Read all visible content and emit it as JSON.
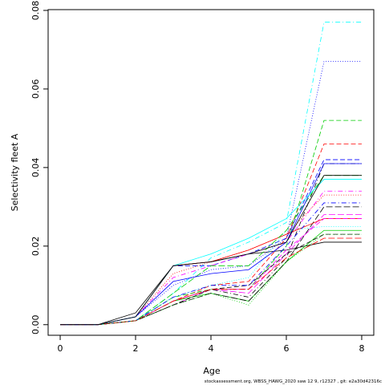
{
  "chart_data": {
    "type": "line",
    "xlabel": "Age",
    "ylabel": "Selectivity fleet A",
    "footnote": "stockassessment.org, WBSS_HAWG_2020 saw 12 9, r12327 , git: e2a30d42316c",
    "x": [
      0,
      1,
      2,
      3,
      4,
      5,
      6,
      7,
      8
    ],
    "xlim": [
      -0.32,
      8.32
    ],
    "xticks": [
      0,
      2,
      4,
      6,
      8
    ],
    "ylim": [
      -0.0027,
      0.0802
    ],
    "yticks": [
      {
        "value": 0,
        "label": "0.00"
      },
      {
        "value": 0.02,
        "label": "0.02"
      },
      {
        "value": 0.04,
        "label": "0.04"
      },
      {
        "value": 0.06,
        "label": "0.06"
      },
      {
        "value": 0.08,
        "label": "0.08"
      }
    ],
    "grid": false,
    "series": [
      {
        "color": "#000000",
        "dash": "none",
        "values": [
          0,
          0,
          0.003,
          0.015,
          0.016,
          0.018,
          0.019,
          0.021,
          0.021
        ]
      },
      {
        "color": "#ff0000",
        "dash": "6,3",
        "values": [
          0,
          0,
          0.001,
          0.006,
          0.01,
          0.011,
          0.022,
          0.046,
          0.046
        ]
      },
      {
        "color": "#00cd00",
        "dash": "6,3",
        "values": [
          0,
          0,
          0.001,
          0.007,
          0.009,
          0.009,
          0.02,
          0.052,
          0.052
        ]
      },
      {
        "color": "#0000ff",
        "dash": "1,2",
        "values": [
          0,
          0,
          0.002,
          0.01,
          0.014,
          0.015,
          0.022,
          0.067,
          0.067
        ]
      },
      {
        "color": "#00ffff",
        "dash": "1,3,6,3",
        "values": [
          0,
          0,
          0.001,
          0.008,
          0.017,
          0.021,
          0.026,
          0.077,
          0.077
        ]
      },
      {
        "color": "#ff00ff",
        "dash": "8,3",
        "values": [
          0,
          0,
          0.001,
          0.005,
          0.009,
          0.008,
          0.018,
          0.028,
          0.028
        ]
      },
      {
        "color": "#000000",
        "dash": "1,3,6,3",
        "values": [
          0,
          0,
          0.001,
          0.006,
          0.009,
          0.007,
          0.017,
          0.041,
          0.041
        ]
      },
      {
        "color": "#ff0000",
        "dash": "1,2",
        "values": [
          0,
          0,
          0.002,
          0.013,
          0.016,
          0.019,
          0.023,
          0.033,
          0.033
        ]
      },
      {
        "color": "#00cd00",
        "dash": "none",
        "values": [
          0,
          0,
          0.001,
          0.006,
          0.008,
          0.006,
          0.016,
          0.024,
          0.024
        ]
      },
      {
        "color": "#0000ff",
        "dash": "6,3",
        "values": [
          0,
          0,
          0.002,
          0.015,
          0.015,
          0.018,
          0.022,
          0.042,
          0.042
        ]
      },
      {
        "color": "#00ffff",
        "dash": "1,2",
        "values": [
          0,
          0,
          0.001,
          0.007,
          0.01,
          0.012,
          0.024,
          0.025,
          0.025
        ]
      },
      {
        "color": "#ff00ff",
        "dash": "1,3,6,3",
        "values": [
          0,
          0,
          0.002,
          0.012,
          0.015,
          0.018,
          0.021,
          0.034,
          0.034
        ]
      },
      {
        "color": "#000000",
        "dash": "8,3",
        "values": [
          0,
          0,
          0.001,
          0.005,
          0.008,
          0.006,
          0.016,
          0.03,
          0.03
        ]
      },
      {
        "color": "#ff0000",
        "dash": "none",
        "values": [
          0,
          0,
          0.002,
          0.015,
          0.016,
          0.019,
          0.023,
          0.027,
          0.027
        ]
      },
      {
        "color": "#00cd00",
        "dash": "8,3",
        "values": [
          0,
          0,
          0.001,
          0.008,
          0.015,
          0.015,
          0.024,
          0.038,
          0.038
        ]
      },
      {
        "color": "#0000ff",
        "dash": "none",
        "values": [
          0,
          0,
          0.002,
          0.011,
          0.013,
          0.014,
          0.021,
          0.041,
          0.041
        ]
      },
      {
        "color": "#00ffff",
        "dash": "none",
        "values": [
          0,
          0,
          0.002,
          0.015,
          0.018,
          0.022,
          0.027,
          0.037,
          0.037
        ]
      },
      {
        "color": "#ff00ff",
        "dash": "6,3",
        "values": [
          0,
          0,
          0.001,
          0.006,
          0.009,
          0.009,
          0.019,
          0.027,
          0.027
        ]
      },
      {
        "color": "#000000",
        "dash": "6,3",
        "values": [
          0,
          0,
          0.001,
          0.005,
          0.009,
          0.01,
          0.018,
          0.023,
          0.023
        ]
      },
      {
        "color": "#0000ff",
        "dash": "1,3,6,3",
        "values": [
          0,
          0,
          0.001,
          0.007,
          0.01,
          0.01,
          0.02,
          0.031,
          0.031
        ]
      },
      {
        "color": "#ff0000",
        "dash": "8,3",
        "values": [
          0,
          0,
          0.001,
          0.006,
          0.009,
          0.009,
          0.017,
          0.022,
          0.022
        ]
      },
      {
        "color": "#00cd00",
        "dash": "1,2",
        "values": [
          0,
          0,
          0.001,
          0.005,
          0.008,
          0.005,
          0.016,
          0.023,
          0.023
        ]
      },
      {
        "color": "#000000",
        "dash": "none",
        "values": [
          0,
          0,
          0.002,
          0.015,
          0.016,
          0.018,
          0.021,
          0.038,
          0.038
        ]
      }
    ]
  }
}
